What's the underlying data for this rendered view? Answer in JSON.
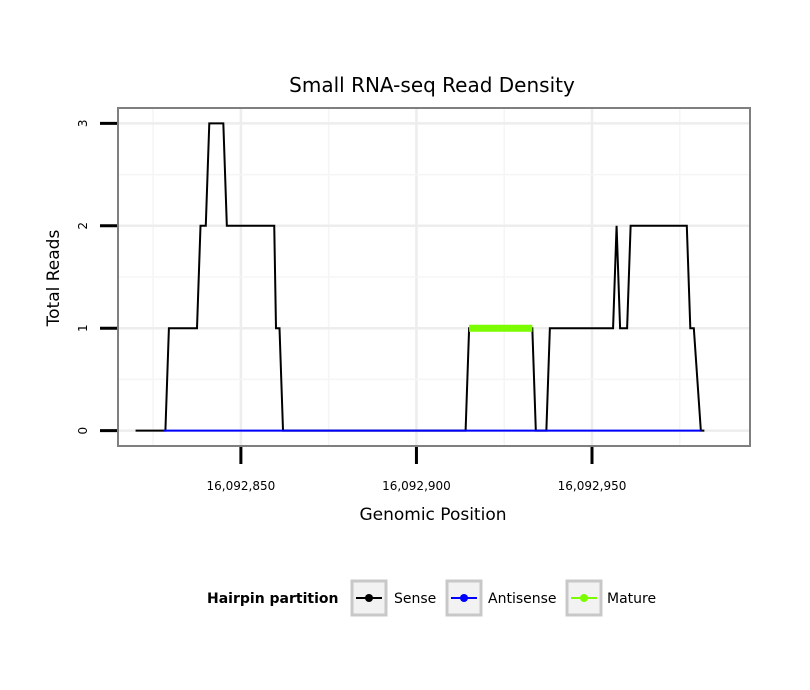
{
  "chart_data": {
    "type": "line",
    "title": "Small RNA-seq Read Density",
    "xlabel": "Genomic Position",
    "ylabel": "Total Reads",
    "xlim": [
      16092815,
      16092995
    ],
    "ylim": [
      -0.15,
      3.15
    ],
    "x_ticks": [
      16092850,
      16092900,
      16092950
    ],
    "x_tick_labels": [
      "16,092,850",
      "16,092,900",
      "16,092,950"
    ],
    "y_ticks": [
      0,
      1,
      2,
      3
    ],
    "y_tick_labels": [
      "0",
      "1",
      "2",
      "3"
    ],
    "grid": true,
    "legend": {
      "title": "Hairpin partition",
      "position": "bottom",
      "entries": [
        "Sense",
        "Antisense",
        "Mature"
      ]
    },
    "series": [
      {
        "name": "Sense",
        "color": "#000000",
        "x": [
          16092820,
          16092828.5,
          16092829.5,
          16092837.5,
          16092838.5,
          16092840,
          16092841,
          16092845,
          16092846,
          16092859.5,
          16092860,
          16092861,
          16092862,
          16092914,
          16092915,
          16092933,
          16092934,
          16092937,
          16092938,
          16092956,
          16092957,
          16092958,
          16092960,
          16092961,
          16092977,
          16092978,
          16092979,
          16092981,
          16092982
        ],
        "y": [
          0,
          0,
          1,
          1,
          2,
          2,
          3,
          3,
          2,
          2,
          1,
          1,
          0,
          0,
          1,
          1,
          0,
          0,
          1,
          1,
          2,
          1,
          1,
          2,
          2,
          1,
          1,
          0,
          0
        ]
      },
      {
        "name": "Antisense",
        "color": "#0000ff",
        "x": [
          16092828,
          16092862,
          16092914,
          16092934,
          16092937,
          16092981
        ],
        "y": [
          0,
          0,
          0,
          0,
          0,
          0
        ]
      },
      {
        "name": "Mature",
        "color": "#7cfc00",
        "x": [
          16092915,
          16092933
        ],
        "y": [
          1,
          1
        ]
      }
    ]
  }
}
